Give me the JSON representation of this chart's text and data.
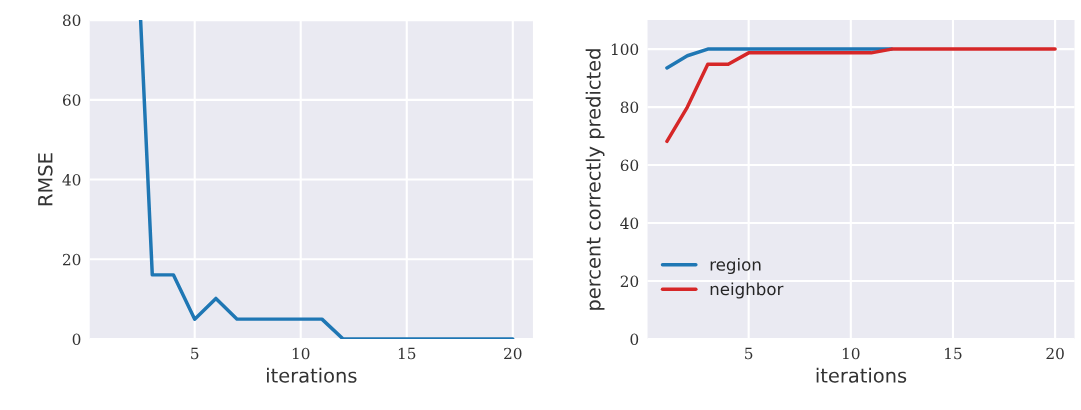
{
  "chart_data": [
    {
      "type": "line",
      "xlabel": "iterations",
      "ylabel": "RMSE",
      "xlim": [
        0.05,
        20.95
      ],
      "xticks": [
        5,
        10,
        15,
        20
      ],
      "ylim": [
        0,
        80
      ],
      "yticks": [
        0,
        20,
        40,
        60,
        80
      ],
      "grid": true,
      "series": [
        {
          "color": "#1f77b4",
          "x": [
            2.45,
            3,
            4,
            5,
            6,
            7,
            8,
            9,
            10,
            11,
            12,
            13,
            14,
            15,
            16,
            17,
            18,
            19,
            20
          ],
          "values": [
            80,
            16.1,
            16.1,
            5.0,
            10.2,
            5.0,
            5.0,
            5.0,
            5.0,
            5.0,
            0,
            0,
            0,
            0,
            0,
            0,
            0,
            0,
            0
          ]
        }
      ]
    },
    {
      "type": "line",
      "xlabel": "iterations",
      "ylabel": "percent correctly predicted",
      "xlim": [
        0.05,
        20.95
      ],
      "xticks": [
        5,
        10,
        15,
        20
      ],
      "ylim": [
        0,
        110
      ],
      "yticks": [
        0,
        20,
        40,
        60,
        80,
        100
      ],
      "grid": true,
      "legend": "bottom left",
      "x": [
        1,
        2,
        3,
        4,
        5,
        6,
        7,
        8,
        9,
        10,
        11,
        12,
        13,
        14,
        15,
        16,
        17,
        18,
        19,
        20
      ],
      "series": [
        {
          "name": "region",
          "color": "#1f77b4",
          "values": [
            93.5,
            97.7,
            100,
            100,
            100,
            100,
            100,
            100,
            100,
            100,
            100,
            100,
            null,
            null,
            null,
            null,
            null,
            null,
            null,
            null
          ]
        },
        {
          "name": "neighbor",
          "color": "#d62728",
          "values": [
            68.2,
            80,
            94.8,
            94.8,
            98.7,
            98.7,
            98.7,
            98.7,
            98.7,
            98.7,
            98.7,
            100,
            100,
            100,
            100,
            100,
            100,
            100,
            100,
            100
          ]
        }
      ]
    }
  ]
}
